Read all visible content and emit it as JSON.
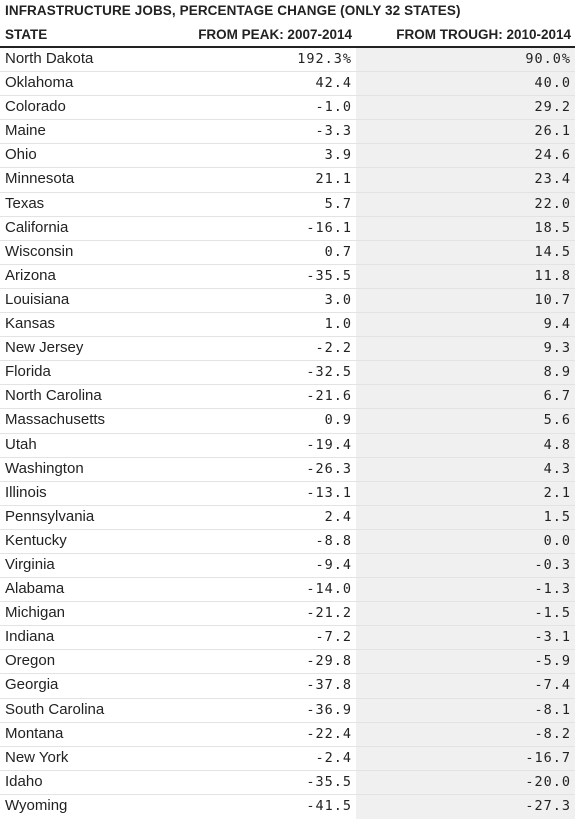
{
  "title": "INFRASTRUCTURE JOBS, PERCENTAGE CHANGE (ONLY 32 STATES)",
  "columns": {
    "state": "STATE",
    "peak": "FROM PEAK: 2007-2014",
    "trough": "FROM TROUGH: 2010-2014"
  },
  "chart_data": {
    "type": "table",
    "title": "INFRASTRUCTURE JOBS, PERCENTAGE CHANGE (ONLY 32 STATES)",
    "headers": [
      "STATE",
      "FROM PEAK: 2007-2014",
      "FROM TROUGH: 2010-2014"
    ],
    "rows": [
      {
        "state": "North Dakota",
        "peak": "192.3%",
        "trough": "90.0%"
      },
      {
        "state": "Oklahoma",
        "peak": "42.4",
        "trough": "40.0"
      },
      {
        "state": "Colorado",
        "peak": "-1.0",
        "trough": "29.2"
      },
      {
        "state": "Maine",
        "peak": "-3.3",
        "trough": "26.1"
      },
      {
        "state": "Ohio",
        "peak": "3.9",
        "trough": "24.6"
      },
      {
        "state": "Minnesota",
        "peak": "21.1",
        "trough": "23.4"
      },
      {
        "state": "Texas",
        "peak": "5.7",
        "trough": "22.0"
      },
      {
        "state": "California",
        "peak": "-16.1",
        "trough": "18.5"
      },
      {
        "state": "Wisconsin",
        "peak": "0.7",
        "trough": "14.5"
      },
      {
        "state": "Arizona",
        "peak": "-35.5",
        "trough": "11.8"
      },
      {
        "state": "Louisiana",
        "peak": "3.0",
        "trough": "10.7"
      },
      {
        "state": "Kansas",
        "peak": "1.0",
        "trough": "9.4"
      },
      {
        "state": "New Jersey",
        "peak": "-2.2",
        "trough": "9.3"
      },
      {
        "state": "Florida",
        "peak": "-32.5",
        "trough": "8.9"
      },
      {
        "state": "North Carolina",
        "peak": "-21.6",
        "trough": "6.7"
      },
      {
        "state": "Massachusetts",
        "peak": "0.9",
        "trough": "5.6"
      },
      {
        "state": "Utah",
        "peak": "-19.4",
        "trough": "4.8"
      },
      {
        "state": "Washington",
        "peak": "-26.3",
        "trough": "4.3"
      },
      {
        "state": "Illinois",
        "peak": "-13.1",
        "trough": "2.1"
      },
      {
        "state": "Pennsylvania",
        "peak": "2.4",
        "trough": "1.5"
      },
      {
        "state": "Kentucky",
        "peak": "-8.8",
        "trough": "0.0"
      },
      {
        "state": "Virginia",
        "peak": "-9.4",
        "trough": "-0.3"
      },
      {
        "state": "Alabama",
        "peak": "-14.0",
        "trough": "-1.3"
      },
      {
        "state": "Michigan",
        "peak": "-21.2",
        "trough": "-1.5"
      },
      {
        "state": "Indiana",
        "peak": "-7.2",
        "trough": "-3.1"
      },
      {
        "state": "Oregon",
        "peak": "-29.8",
        "trough": "-5.9"
      },
      {
        "state": "Georgia",
        "peak": "-37.8",
        "trough": "-7.4"
      },
      {
        "state": "South Carolina",
        "peak": "-36.9",
        "trough": "-8.1"
      },
      {
        "state": "Montana",
        "peak": "-22.4",
        "trough": "-8.2"
      },
      {
        "state": "New York",
        "peak": "-2.4",
        "trough": "-16.7"
      },
      {
        "state": "Idaho",
        "peak": "-35.5",
        "trough": "-20.0"
      },
      {
        "state": "Wyoming",
        "peak": "-41.5",
        "trough": "-27.3"
      }
    ]
  }
}
